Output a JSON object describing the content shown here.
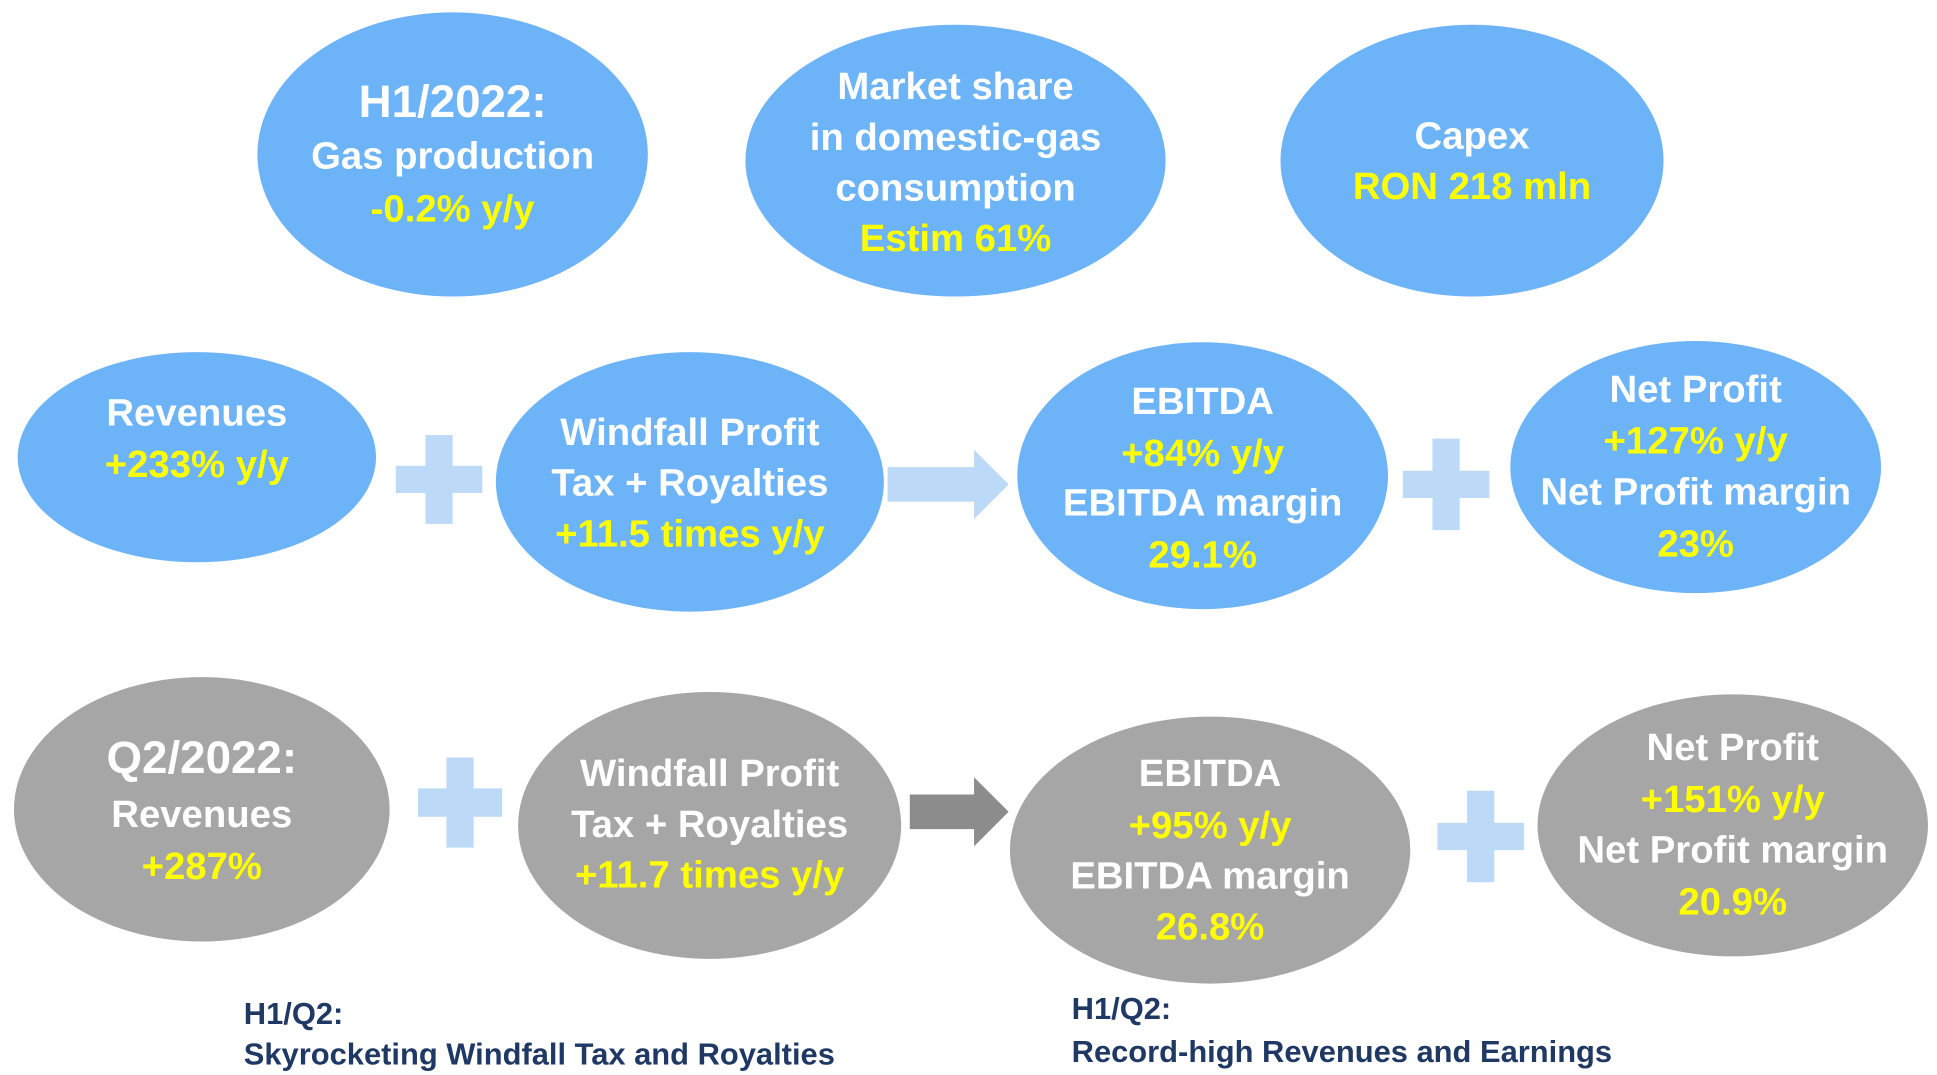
{
  "nodes": [
    {
      "fill": "#6db3f7",
      "lines": [
        {
          "text": "H1/2022:",
          "color": "#ffffff"
        },
        {
          "text": "Gas production",
          "color": "#ffffff"
        },
        {
          "text": "-0.2% y/y",
          "color": "#ffff00"
        }
      ]
    },
    {
      "fill": "#6db3f7",
      "lines": [
        {
          "text": "Market share",
          "color": "#ffffff"
        },
        {
          "text": "in domestic-gas",
          "color": "#ffffff"
        },
        {
          "text": "consumption",
          "color": "#ffffff"
        },
        {
          "text": "Estim 61%",
          "color": "#ffff00"
        }
      ]
    },
    {
      "fill": "#6db3f7",
      "lines": [
        {
          "text": "Capex",
          "color": "#ffffff"
        },
        {
          "text": "RON 218 mln",
          "color": "#ffff00"
        }
      ]
    },
    {
      "fill": "#6db3f7",
      "lines": [
        {
          "text": "Revenues",
          "color": "#ffffff"
        },
        {
          "text": "+233% y/y",
          "color": "#ffff00"
        }
      ]
    },
    {
      "fill": "#6db3f7",
      "lines": [
        {
          "text": "Windfall Profit",
          "color": "#ffffff"
        },
        {
          "text": "Tax + Royalties",
          "color": "#ffffff"
        },
        {
          "text": "+11.5 times y/y",
          "color": "#ffff00"
        }
      ]
    },
    {
      "fill": "#6db3f7",
      "lines": [
        {
          "text": "EBITDA",
          "color": "#ffffff"
        },
        {
          "text": "+84% y/y",
          "color": "#ffff00"
        },
        {
          "text": "EBITDA margin",
          "color": "#ffffff"
        },
        {
          "text": "29.1%",
          "color": "#ffff00"
        }
      ]
    },
    {
      "fill": "#6db3f7",
      "lines": [
        {
          "text": "Net Profit",
          "color": "#ffffff"
        },
        {
          "text": "+127% y/y",
          "color": "#ffff00"
        },
        {
          "text": "Net Profit margin",
          "color": "#ffffff"
        },
        {
          "text": "23%",
          "color": "#ffff00"
        }
      ]
    },
    {
      "fill": "#a6a6a6",
      "lines": [
        {
          "text": "Q2/2022:",
          "color": "#ffffff"
        },
        {
          "text": "Revenues",
          "color": "#ffffff"
        },
        {
          "text": "+287%",
          "color": "#ffff00"
        }
      ]
    },
    {
      "fill": "#a6a6a6",
      "lines": [
        {
          "text": "Windfall Profit",
          "color": "#ffffff"
        },
        {
          "text": "Tax + Royalties",
          "color": "#ffffff"
        },
        {
          "text": "+11.7 times y/y",
          "color": "#ffff00"
        }
      ]
    },
    {
      "fill": "#a6a6a6",
      "lines": [
        {
          "text": "EBITDA",
          "color": "#ffffff"
        },
        {
          "text": "+95% y/y",
          "color": "#ffff00"
        },
        {
          "text": "EBITDA margin",
          "color": "#ffffff"
        },
        {
          "text": "26.8%",
          "color": "#ffff00"
        }
      ]
    },
    {
      "fill": "#a6a6a6",
      "lines": [
        {
          "text": "Net Profit",
          "color": "#ffffff"
        },
        {
          "text": "+151% y/y",
          "color": "#ffff00"
        },
        {
          "text": "Net Profit margin",
          "color": "#ffffff"
        },
        {
          "text": "20.9%",
          "color": "#ffff00"
        }
      ]
    }
  ],
  "captions": [
    {
      "lines": [
        "H1/Q2:",
        "Skyrocketing Windfall Tax and Royalties"
      ]
    },
    {
      "lines": [
        "H1/Q2:",
        "Record-high Revenues and Earnings"
      ]
    }
  ]
}
